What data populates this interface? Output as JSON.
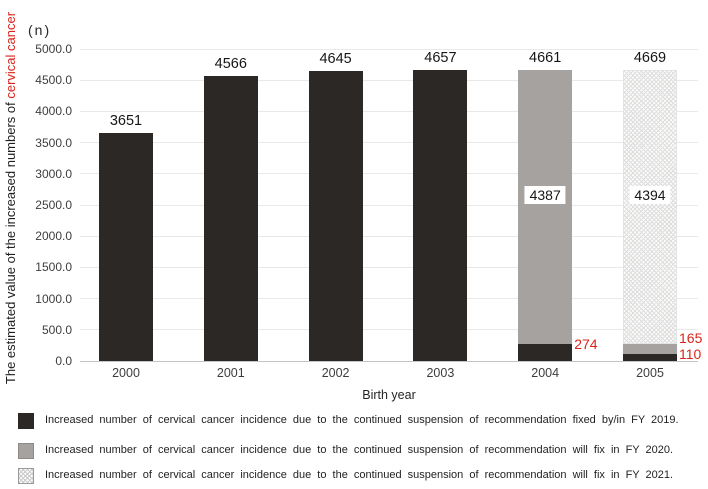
{
  "y_axis": {
    "title_black": "The estimated value of the increased numbers of ",
    "title_red": "cervical cancer",
    "unit": "(n)"
  },
  "x_axis": {
    "title": "Birth year"
  },
  "legend": {
    "items": [
      {
        "swatch": "black",
        "label": "Increased number of cervical cancer incidence due to the continued suspension of recommendation fixed by/in FY 2019."
      },
      {
        "swatch": "gray",
        "label": "Increased number of cervical cancer incidence due to the continued suspension of recommendation will fix in FY 2020."
      },
      {
        "swatch": "hatch",
        "label": "Increased number of cervical cancer incidence due to the continued suspension of recommendation will fix in FY 2021."
      }
    ]
  },
  "colors": {
    "bar_black": "#2b2826",
    "bar_gray": "#a6a29f",
    "hatch_line": "#dedede",
    "hatch_bg": "#fcfbfa",
    "accent_red": "#da251c",
    "gridline": "#e9e9e9",
    "axis_line": "#c5c5c5",
    "text_tick": "#3d3d3d"
  },
  "chart_data": {
    "type": "bar",
    "stacked": true,
    "title": "",
    "xlabel": "Birth year",
    "ylabel": "The estimated value of the increased numbers of cervical cancer (n)",
    "categories": [
      "2000",
      "2001",
      "2002",
      "2003",
      "2004",
      "2005"
    ],
    "series": [
      {
        "name": "Increased number fixed by/in FY 2019",
        "swatch": "black",
        "values": [
          3651,
          4566,
          4645,
          4657,
          274,
          110
        ]
      },
      {
        "name": "Increased number will fix in FY 2020",
        "swatch": "gray",
        "values": [
          0,
          0,
          0,
          0,
          4387,
          165
        ]
      },
      {
        "name": "Increased number will fix in FY 2021",
        "swatch": "hatch",
        "values": [
          0,
          0,
          0,
          0,
          0,
          4394
        ]
      }
    ],
    "totals": [
      "3651",
      "4566",
      "4645",
      "4657",
      "4661",
      "4669"
    ],
    "inside_labels": [
      {
        "category_index": 4,
        "series_index": 1,
        "text": "4387"
      },
      {
        "category_index": 5,
        "series_index": 2,
        "text": "4394"
      }
    ],
    "side_labels": [
      {
        "category_index": 4,
        "series_index": 0,
        "text": "274"
      },
      {
        "category_index": 5,
        "series_index": 1,
        "text": "165"
      },
      {
        "category_index": 5,
        "series_index": 0,
        "text": "110"
      }
    ],
    "ylim": [
      0,
      5000
    ],
    "ytick_step": 500,
    "grid": true,
    "legend_position": "bottom"
  }
}
